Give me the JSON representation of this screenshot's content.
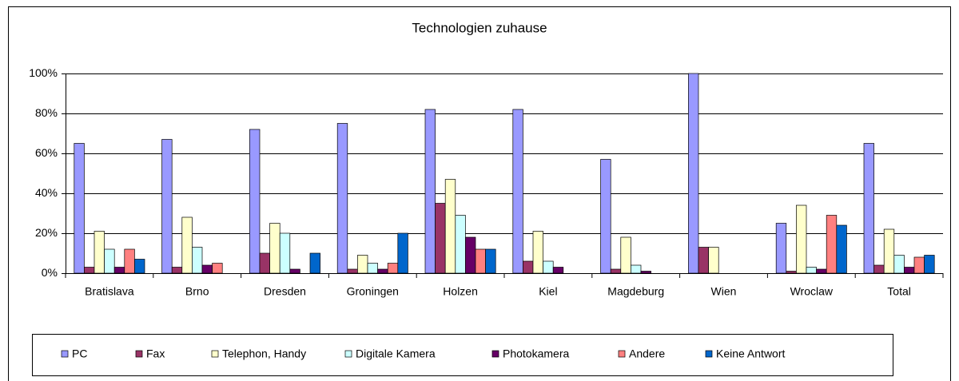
{
  "chart_data": {
    "type": "bar",
    "title": "Technologien zuhause",
    "categories": [
      "Bratislava",
      "Brno",
      "Dresden",
      "Groningen",
      "Holzen",
      "Kiel",
      "Magdeburg",
      "Wien",
      "Wroclaw",
      "Total"
    ],
    "series": [
      {
        "name": "PC",
        "color": "#9999ff",
        "values": [
          65,
          67,
          72,
          75,
          82,
          82,
          57,
          100,
          25,
          65
        ]
      },
      {
        "name": "Fax",
        "color": "#993366",
        "values": [
          3,
          3,
          10,
          2,
          35,
          6,
          2,
          13,
          1,
          4
        ]
      },
      {
        "name": "Telephon, Handy",
        "color": "#ffffcc",
        "values": [
          21,
          28,
          25,
          9,
          47,
          21,
          18,
          13,
          34,
          22
        ]
      },
      {
        "name": "Digitale Kamera",
        "color": "#ccffff",
        "values": [
          12,
          13,
          20,
          5,
          29,
          6,
          4,
          0,
          3,
          9
        ]
      },
      {
        "name": "Photokamera",
        "color": "#660066",
        "values": [
          3,
          4,
          2,
          2,
          18,
          3,
          1,
          0,
          2,
          3
        ]
      },
      {
        "name": "Andere",
        "color": "#ff8080",
        "values": [
          12,
          5,
          0,
          5,
          12,
          0,
          0,
          0,
          29,
          8
        ]
      },
      {
        "name": "Keine Antwort",
        "color": "#0066cc",
        "values": [
          7,
          0,
          10,
          20,
          12,
          0,
          0,
          0,
          24,
          9
        ]
      }
    ],
    "ylim": [
      0,
      100
    ],
    "yticks": [
      {
        "value": 0,
        "label": "0%"
      },
      {
        "value": 20,
        "label": "20%"
      },
      {
        "value": 40,
        "label": "40%"
      },
      {
        "value": 60,
        "label": "60%"
      },
      {
        "value": 80,
        "label": "80%"
      },
      {
        "value": 100,
        "label": "100%"
      }
    ],
    "grid": true,
    "legend": "bottom"
  }
}
